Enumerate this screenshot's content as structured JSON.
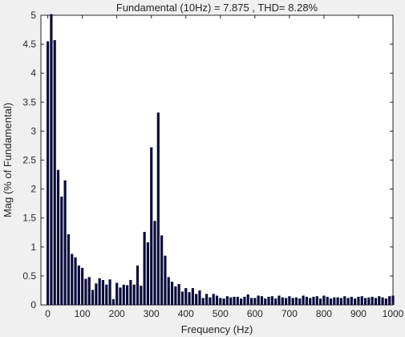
{
  "chart_data": {
    "type": "bar",
    "title": "Fundamental (10Hz) = 7.875 , THD= 8.28%",
    "xlabel": "Frequency (Hz)",
    "ylabel": "Mag (% of Fundamental)",
    "xlim": [
      -20,
      1000
    ],
    "ylim": [
      0,
      5
    ],
    "xticks": [
      0,
      100,
      200,
      300,
      400,
      500,
      600,
      700,
      800,
      900,
      1000
    ],
    "yticks": [
      0,
      0.5,
      1,
      1.5,
      2,
      2.5,
      3,
      3.5,
      4,
      4.5,
      5
    ],
    "grid": false,
    "legend": "none",
    "bar_color": "#0b0b3b",
    "plot_background": "#ffffff",
    "figure_background": "#f0f0f0",
    "x": [
      0,
      10,
      20,
      30,
      40,
      50,
      60,
      70,
      80,
      90,
      100,
      110,
      120,
      130,
      140,
      150,
      160,
      170,
      180,
      190,
      200,
      210,
      220,
      230,
      240,
      250,
      260,
      270,
      280,
      290,
      300,
      310,
      320,
      330,
      340,
      350,
      360,
      370,
      380,
      390,
      400,
      410,
      420,
      430,
      440,
      450,
      460,
      470,
      480,
      490,
      500,
      510,
      520,
      530,
      540,
      550,
      560,
      570,
      580,
      590,
      600,
      610,
      620,
      630,
      640,
      650,
      660,
      670,
      680,
      690,
      700,
      710,
      720,
      730,
      740,
      750,
      760,
      770,
      780,
      790,
      800,
      810,
      820,
      830,
      840,
      850,
      860,
      870,
      880,
      890,
      900,
      910,
      920,
      930,
      940,
      950,
      960,
      970,
      980,
      990,
      1000
    ],
    "values": [
      4.55,
      5.02,
      4.57,
      2.33,
      1.87,
      2.15,
      1.22,
      0.88,
      0.82,
      0.68,
      0.64,
      0.45,
      0.48,
      0.26,
      0.37,
      0.46,
      0.43,
      0.35,
      0.44,
      0.1,
      0.38,
      0.3,
      0.35,
      0.34,
      0.43,
      0.35,
      0.68,
      0.33,
      1.26,
      1.08,
      2.72,
      1.45,
      3.32,
      1.2,
      0.85,
      0.48,
      0.4,
      0.32,
      0.36,
      0.23,
      0.29,
      0.22,
      0.29,
      0.19,
      0.25,
      0.12,
      0.19,
      0.13,
      0.19,
      0.16,
      0.12,
      0.11,
      0.15,
      0.13,
      0.14,
      0.14,
      0.11,
      0.14,
      0.18,
      0.12,
      0.12,
      0.16,
      0.15,
      0.11,
      0.14,
      0.15,
      0.11,
      0.16,
      0.13,
      0.12,
      0.15,
      0.12,
      0.13,
      0.11,
      0.16,
      0.14,
      0.12,
      0.14,
      0.15,
      0.11,
      0.16,
      0.14,
      0.11,
      0.13,
      0.13,
      0.12,
      0.15,
      0.12,
      0.14,
      0.11,
      0.14,
      0.15,
      0.12,
      0.13,
      0.14,
      0.12,
      0.15,
      0.13,
      0.11,
      0.15,
      0.16
    ]
  }
}
